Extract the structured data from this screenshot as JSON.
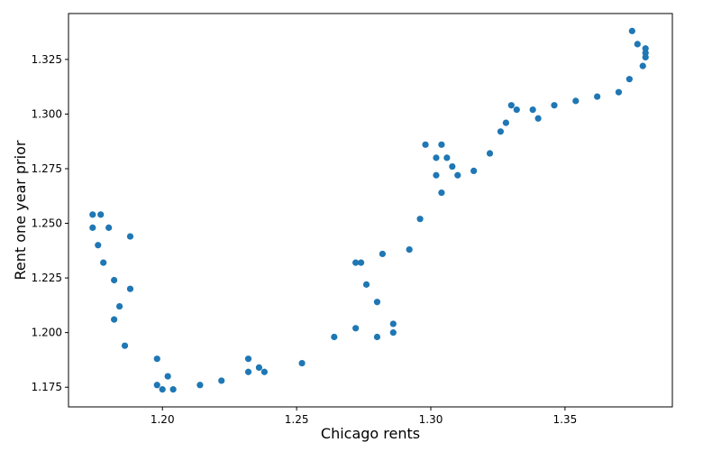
{
  "chart_data": {
    "type": "scatter",
    "title": "",
    "xlabel": "Chicago rents",
    "ylabel": "Rent one year prior",
    "xlim": [
      1.165,
      1.39
    ],
    "ylim": [
      1.166,
      1.346
    ],
    "x_ticks": [
      1.2,
      1.25,
      1.3,
      1.35
    ],
    "x_tick_labels": [
      "1.20",
      "1.25",
      "1.30",
      "1.35"
    ],
    "y_ticks": [
      1.175,
      1.2,
      1.225,
      1.25,
      1.275,
      1.3,
      1.325
    ],
    "y_tick_labels": [
      "1.175",
      "1.200",
      "1.225",
      "1.250",
      "1.275",
      "1.300",
      "1.325"
    ],
    "grid": false,
    "marker_color": "#1f77b4",
    "series": [
      {
        "x": [
          1.174,
          1.177,
          1.174,
          1.18,
          1.188,
          1.176,
          1.178,
          1.182,
          1.188,
          1.184,
          1.182,
          1.186,
          1.198,
          1.198,
          1.2,
          1.202,
          1.204,
          1.214,
          1.222,
          1.232,
          1.232,
          1.236,
          1.238,
          1.252,
          1.264,
          1.272,
          1.272,
          1.274,
          1.276,
          1.28,
          1.282,
          1.28,
          1.286,
          1.286,
          1.292,
          1.296,
          1.298,
          1.302,
          1.304,
          1.302,
          1.304,
          1.306,
          1.308,
          1.31,
          1.316,
          1.322,
          1.326,
          1.328,
          1.33,
          1.332,
          1.338,
          1.34,
          1.346,
          1.354,
          1.362,
          1.37,
          1.374,
          1.375,
          1.377,
          1.379,
          1.38,
          1.38,
          1.38
        ],
        "y": [
          1.254,
          1.254,
          1.248,
          1.248,
          1.244,
          1.24,
          1.232,
          1.224,
          1.22,
          1.212,
          1.206,
          1.194,
          1.188,
          1.176,
          1.174,
          1.18,
          1.174,
          1.176,
          1.178,
          1.188,
          1.182,
          1.184,
          1.182,
          1.186,
          1.198,
          1.202,
          1.232,
          1.232,
          1.222,
          1.214,
          1.236,
          1.198,
          1.204,
          1.2,
          1.238,
          1.252,
          1.286,
          1.28,
          1.286,
          1.272,
          1.264,
          1.28,
          1.276,
          1.272,
          1.274,
          1.282,
          1.292,
          1.296,
          1.304,
          1.302,
          1.302,
          1.298,
          1.304,
          1.306,
          1.308,
          1.31,
          1.316,
          1.338,
          1.332,
          1.322,
          1.33,
          1.328,
          1.326
        ]
      }
    ]
  }
}
